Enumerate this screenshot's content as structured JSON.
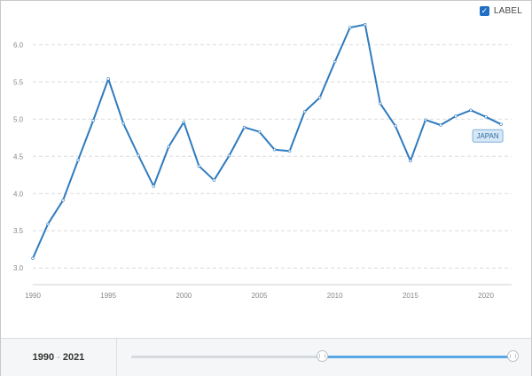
{
  "controls": {
    "label_toggle": {
      "text": "LABEL",
      "checked": true
    }
  },
  "range": {
    "start": "1990",
    "separator": "-",
    "end": "2021",
    "start_fraction": 0.5,
    "end_fraction": 1.0
  },
  "colors": {
    "line": "#2f7bbf",
    "tag_bg": "#d6e7f6",
    "tag_border": "#7fb0db",
    "tag_text": "#2e6da4",
    "grid": "#dcdcdc",
    "tick": "#888888"
  },
  "chart_data": {
    "type": "line",
    "x": [
      1990,
      1991,
      1992,
      1993,
      1994,
      1995,
      1996,
      1997,
      1998,
      1999,
      2000,
      2001,
      2002,
      2003,
      2004,
      2005,
      2006,
      2007,
      2008,
      2009,
      2010,
      2011,
      2012,
      2013,
      2014,
      2015,
      2016,
      2017,
      2018,
      2019,
      2020,
      2021
    ],
    "series": [
      {
        "name": "JAPAN",
        "values": [
          3.13,
          3.59,
          3.91,
          4.45,
          4.98,
          5.54,
          4.94,
          4.51,
          4.1,
          4.63,
          4.96,
          4.37,
          4.18,
          4.51,
          4.89,
          4.83,
          4.59,
          4.57,
          5.1,
          5.29,
          5.77,
          6.23,
          6.27,
          5.21,
          4.91,
          4.44,
          4.99,
          4.92,
          5.04,
          5.12,
          5.03,
          4.93
        ]
      }
    ],
    "xticks": [
      1990,
      1995,
      2000,
      2005,
      2010,
      2015,
      2020
    ],
    "yticks": [
      "3.0",
      "3.5",
      "4.0",
      "4.5",
      "5.0",
      "5.5",
      "6.0"
    ],
    "xlim": [
      1990,
      2021.7
    ],
    "ylim": [
      2.8,
      6.35
    ],
    "grid": true,
    "legend": "inline-label-at-last-point",
    "title": "",
    "xlabel": "",
    "ylabel": ""
  }
}
